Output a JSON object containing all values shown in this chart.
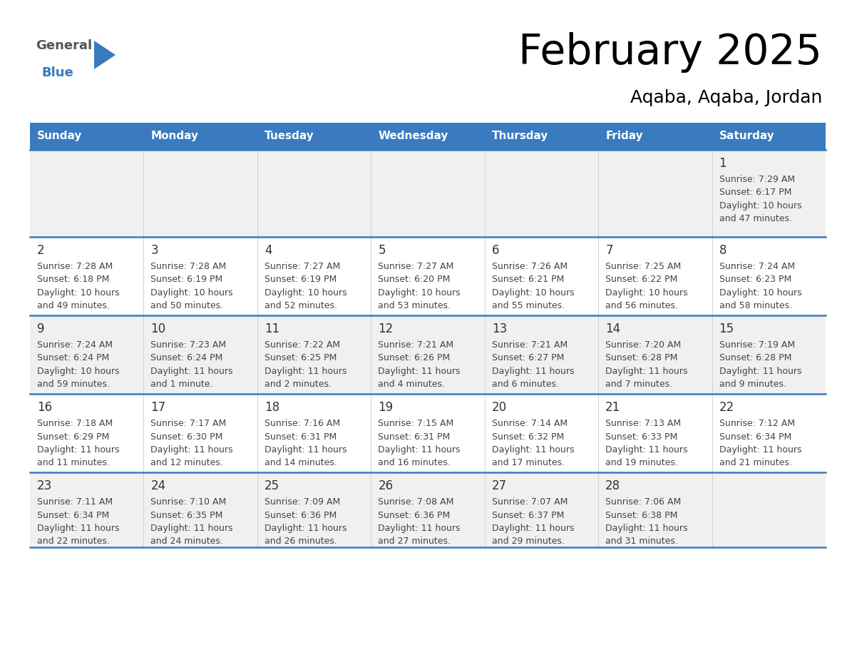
{
  "title": "February 2025",
  "subtitle": "Aqaba, Aqaba, Jordan",
  "days_of_week": [
    "Sunday",
    "Monday",
    "Tuesday",
    "Wednesday",
    "Thursday",
    "Friday",
    "Saturday"
  ],
  "header_bg": "#3a7abf",
  "header_text": "#ffffff",
  "row_bg_odd": "#f0f0f0",
  "row_bg_even": "#ffffff",
  "cell_border": "#3a7abf",
  "day_number_color": "#333333",
  "info_text_color": "#444444",
  "title_color": "#000000",
  "subtitle_color": "#000000",
  "calendar": [
    [
      null,
      null,
      null,
      null,
      null,
      null,
      {
        "day": "1",
        "sunrise": "7:29 AM",
        "sunset": "6:17 PM",
        "daylight_line1": "Daylight: 10 hours",
        "daylight_line2": "and 47 minutes."
      }
    ],
    [
      {
        "day": "2",
        "sunrise": "7:28 AM",
        "sunset": "6:18 PM",
        "daylight_line1": "Daylight: 10 hours",
        "daylight_line2": "and 49 minutes."
      },
      {
        "day": "3",
        "sunrise": "7:28 AM",
        "sunset": "6:19 PM",
        "daylight_line1": "Daylight: 10 hours",
        "daylight_line2": "and 50 minutes."
      },
      {
        "day": "4",
        "sunrise": "7:27 AM",
        "sunset": "6:19 PM",
        "daylight_line1": "Daylight: 10 hours",
        "daylight_line2": "and 52 minutes."
      },
      {
        "day": "5",
        "sunrise": "7:27 AM",
        "sunset": "6:20 PM",
        "daylight_line1": "Daylight: 10 hours",
        "daylight_line2": "and 53 minutes."
      },
      {
        "day": "6",
        "sunrise": "7:26 AM",
        "sunset": "6:21 PM",
        "daylight_line1": "Daylight: 10 hours",
        "daylight_line2": "and 55 minutes."
      },
      {
        "day": "7",
        "sunrise": "7:25 AM",
        "sunset": "6:22 PM",
        "daylight_line1": "Daylight: 10 hours",
        "daylight_line2": "and 56 minutes."
      },
      {
        "day": "8",
        "sunrise": "7:24 AM",
        "sunset": "6:23 PM",
        "daylight_line1": "Daylight: 10 hours",
        "daylight_line2": "and 58 minutes."
      }
    ],
    [
      {
        "day": "9",
        "sunrise": "7:24 AM",
        "sunset": "6:24 PM",
        "daylight_line1": "Daylight: 10 hours",
        "daylight_line2": "and 59 minutes."
      },
      {
        "day": "10",
        "sunrise": "7:23 AM",
        "sunset": "6:24 PM",
        "daylight_line1": "Daylight: 11 hours",
        "daylight_line2": "and 1 minute."
      },
      {
        "day": "11",
        "sunrise": "7:22 AM",
        "sunset": "6:25 PM",
        "daylight_line1": "Daylight: 11 hours",
        "daylight_line2": "and 2 minutes."
      },
      {
        "day": "12",
        "sunrise": "7:21 AM",
        "sunset": "6:26 PM",
        "daylight_line1": "Daylight: 11 hours",
        "daylight_line2": "and 4 minutes."
      },
      {
        "day": "13",
        "sunrise": "7:21 AM",
        "sunset": "6:27 PM",
        "daylight_line1": "Daylight: 11 hours",
        "daylight_line2": "and 6 minutes."
      },
      {
        "day": "14",
        "sunrise": "7:20 AM",
        "sunset": "6:28 PM",
        "daylight_line1": "Daylight: 11 hours",
        "daylight_line2": "and 7 minutes."
      },
      {
        "day": "15",
        "sunrise": "7:19 AM",
        "sunset": "6:28 PM",
        "daylight_line1": "Daylight: 11 hours",
        "daylight_line2": "and 9 minutes."
      }
    ],
    [
      {
        "day": "16",
        "sunrise": "7:18 AM",
        "sunset": "6:29 PM",
        "daylight_line1": "Daylight: 11 hours",
        "daylight_line2": "and 11 minutes."
      },
      {
        "day": "17",
        "sunrise": "7:17 AM",
        "sunset": "6:30 PM",
        "daylight_line1": "Daylight: 11 hours",
        "daylight_line2": "and 12 minutes."
      },
      {
        "day": "18",
        "sunrise": "7:16 AM",
        "sunset": "6:31 PM",
        "daylight_line1": "Daylight: 11 hours",
        "daylight_line2": "and 14 minutes."
      },
      {
        "day": "19",
        "sunrise": "7:15 AM",
        "sunset": "6:31 PM",
        "daylight_line1": "Daylight: 11 hours",
        "daylight_line2": "and 16 minutes."
      },
      {
        "day": "20",
        "sunrise": "7:14 AM",
        "sunset": "6:32 PM",
        "daylight_line1": "Daylight: 11 hours",
        "daylight_line2": "and 17 minutes."
      },
      {
        "day": "21",
        "sunrise": "7:13 AM",
        "sunset": "6:33 PM",
        "daylight_line1": "Daylight: 11 hours",
        "daylight_line2": "and 19 minutes."
      },
      {
        "day": "22",
        "sunrise": "7:12 AM",
        "sunset": "6:34 PM",
        "daylight_line1": "Daylight: 11 hours",
        "daylight_line2": "and 21 minutes."
      }
    ],
    [
      {
        "day": "23",
        "sunrise": "7:11 AM",
        "sunset": "6:34 PM",
        "daylight_line1": "Daylight: 11 hours",
        "daylight_line2": "and 22 minutes."
      },
      {
        "day": "24",
        "sunrise": "7:10 AM",
        "sunset": "6:35 PM",
        "daylight_line1": "Daylight: 11 hours",
        "daylight_line2": "and 24 minutes."
      },
      {
        "day": "25",
        "sunrise": "7:09 AM",
        "sunset": "6:36 PM",
        "daylight_line1": "Daylight: 11 hours",
        "daylight_line2": "and 26 minutes."
      },
      {
        "day": "26",
        "sunrise": "7:08 AM",
        "sunset": "6:36 PM",
        "daylight_line1": "Daylight: 11 hours",
        "daylight_line2": "and 27 minutes."
      },
      {
        "day": "27",
        "sunrise": "7:07 AM",
        "sunset": "6:37 PM",
        "daylight_line1": "Daylight: 11 hours",
        "daylight_line2": "and 29 minutes."
      },
      {
        "day": "28",
        "sunrise": "7:06 AM",
        "sunset": "6:38 PM",
        "daylight_line1": "Daylight: 11 hours",
        "daylight_line2": "and 31 minutes."
      },
      null
    ]
  ],
  "logo_general_color": "#555555",
  "logo_blue_color": "#3a7abf",
  "title_fontsize": 42,
  "subtitle_fontsize": 18,
  "header_fontsize": 11,
  "day_num_fontsize": 12,
  "info_fontsize": 9
}
